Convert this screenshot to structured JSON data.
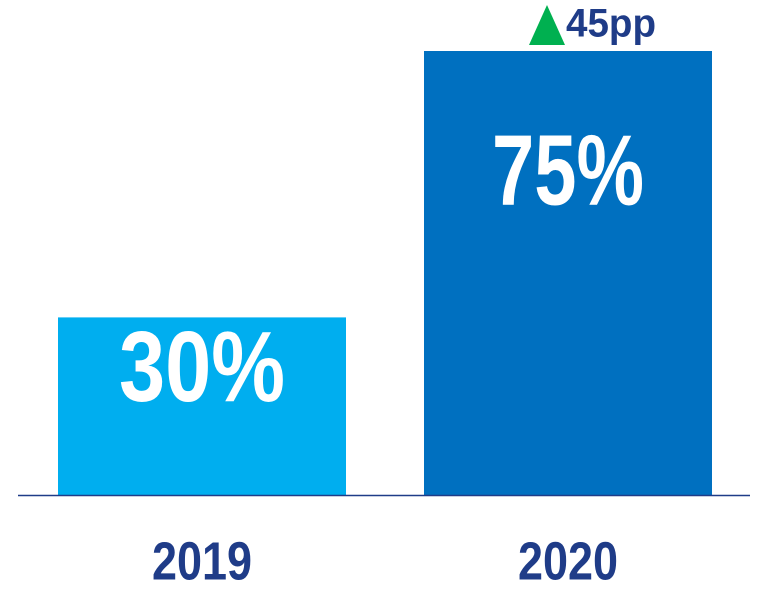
{
  "chart_data": {
    "type": "bar",
    "categories": [
      "2019",
      "2020"
    ],
    "values": [
      30,
      75
    ],
    "value_labels": [
      "30%",
      "75%"
    ],
    "colors": [
      "#00aeef",
      "#0070c0"
    ],
    "annotation": "45pp"
  }
}
